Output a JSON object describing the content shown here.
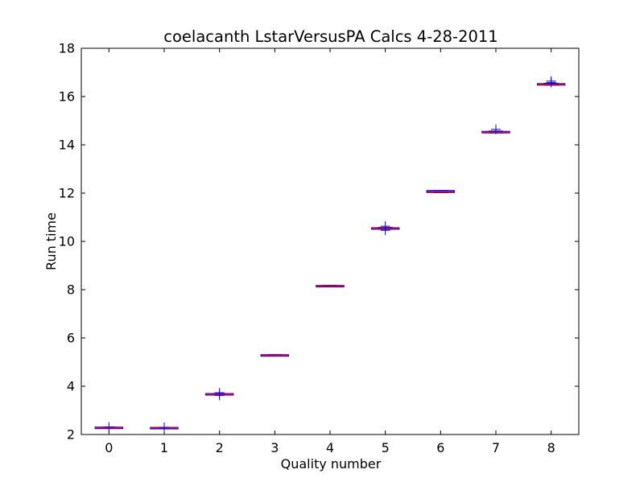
{
  "chart_data": {
    "type": "box",
    "title": "coelacanth LstarVersusPA Calcs 4-28-2011",
    "xlabel": "Quality number",
    "ylabel": "Run time",
    "ylim": [
      2,
      18
    ],
    "xlim": [
      -0.5,
      8.5
    ],
    "yticks": [
      2,
      4,
      6,
      8,
      10,
      12,
      14,
      16,
      18
    ],
    "categories": [
      "0",
      "1",
      "2",
      "3",
      "4",
      "5",
      "6",
      "7",
      "8"
    ],
    "grid": false,
    "legend": "none",
    "boxes": [
      {
        "x": 0,
        "q1": 2.27,
        "median": 2.28,
        "q3": 2.3,
        "whisker_low": 2.26,
        "whisker_high": 2.31,
        "outliers": [
          2.31
        ]
      },
      {
        "x": 1,
        "q1": 2.27,
        "median": 2.28,
        "q3": 2.29,
        "whisker_low": 2.26,
        "whisker_high": 2.3,
        "outliers": [
          2.3
        ]
      },
      {
        "x": 2,
        "q1": 3.66,
        "median": 3.67,
        "q3": 3.69,
        "whisker_low": 3.64,
        "whisker_high": 3.7,
        "outliers": [
          3.73,
          3.62
        ]
      },
      {
        "x": 3,
        "q1": 5.27,
        "median": 5.28,
        "q3": 5.3,
        "whisker_low": 5.26,
        "whisker_high": 5.31,
        "outliers": []
      },
      {
        "x": 4,
        "q1": 8.13,
        "median": 8.15,
        "q3": 8.17,
        "whisker_low": 8.12,
        "whisker_high": 8.18,
        "outliers": []
      },
      {
        "x": 5,
        "q1": 10.52,
        "median": 10.54,
        "q3": 10.56,
        "whisker_low": 10.5,
        "whisker_high": 10.58,
        "outliers": [
          10.63,
          10.46
        ]
      },
      {
        "x": 6,
        "q1": 12.03,
        "median": 12.05,
        "q3": 12.1,
        "whisker_low": 12.02,
        "whisker_high": 12.11,
        "outliers": []
      },
      {
        "x": 7,
        "q1": 14.5,
        "median": 14.52,
        "q3": 14.55,
        "whisker_low": 14.49,
        "whisker_high": 14.57,
        "outliers": [
          14.64
        ]
      },
      {
        "x": 8,
        "q1": 16.48,
        "median": 16.5,
        "q3": 16.53,
        "whisker_low": 16.47,
        "whisker_high": 16.55,
        "outliers": [
          16.64,
          16.58
        ]
      }
    ],
    "colors": {
      "box": "#0000ff",
      "whisker": "#0000ff",
      "median": "#ff0000",
      "outlier": "#0000ff",
      "axes": "#000000"
    }
  }
}
